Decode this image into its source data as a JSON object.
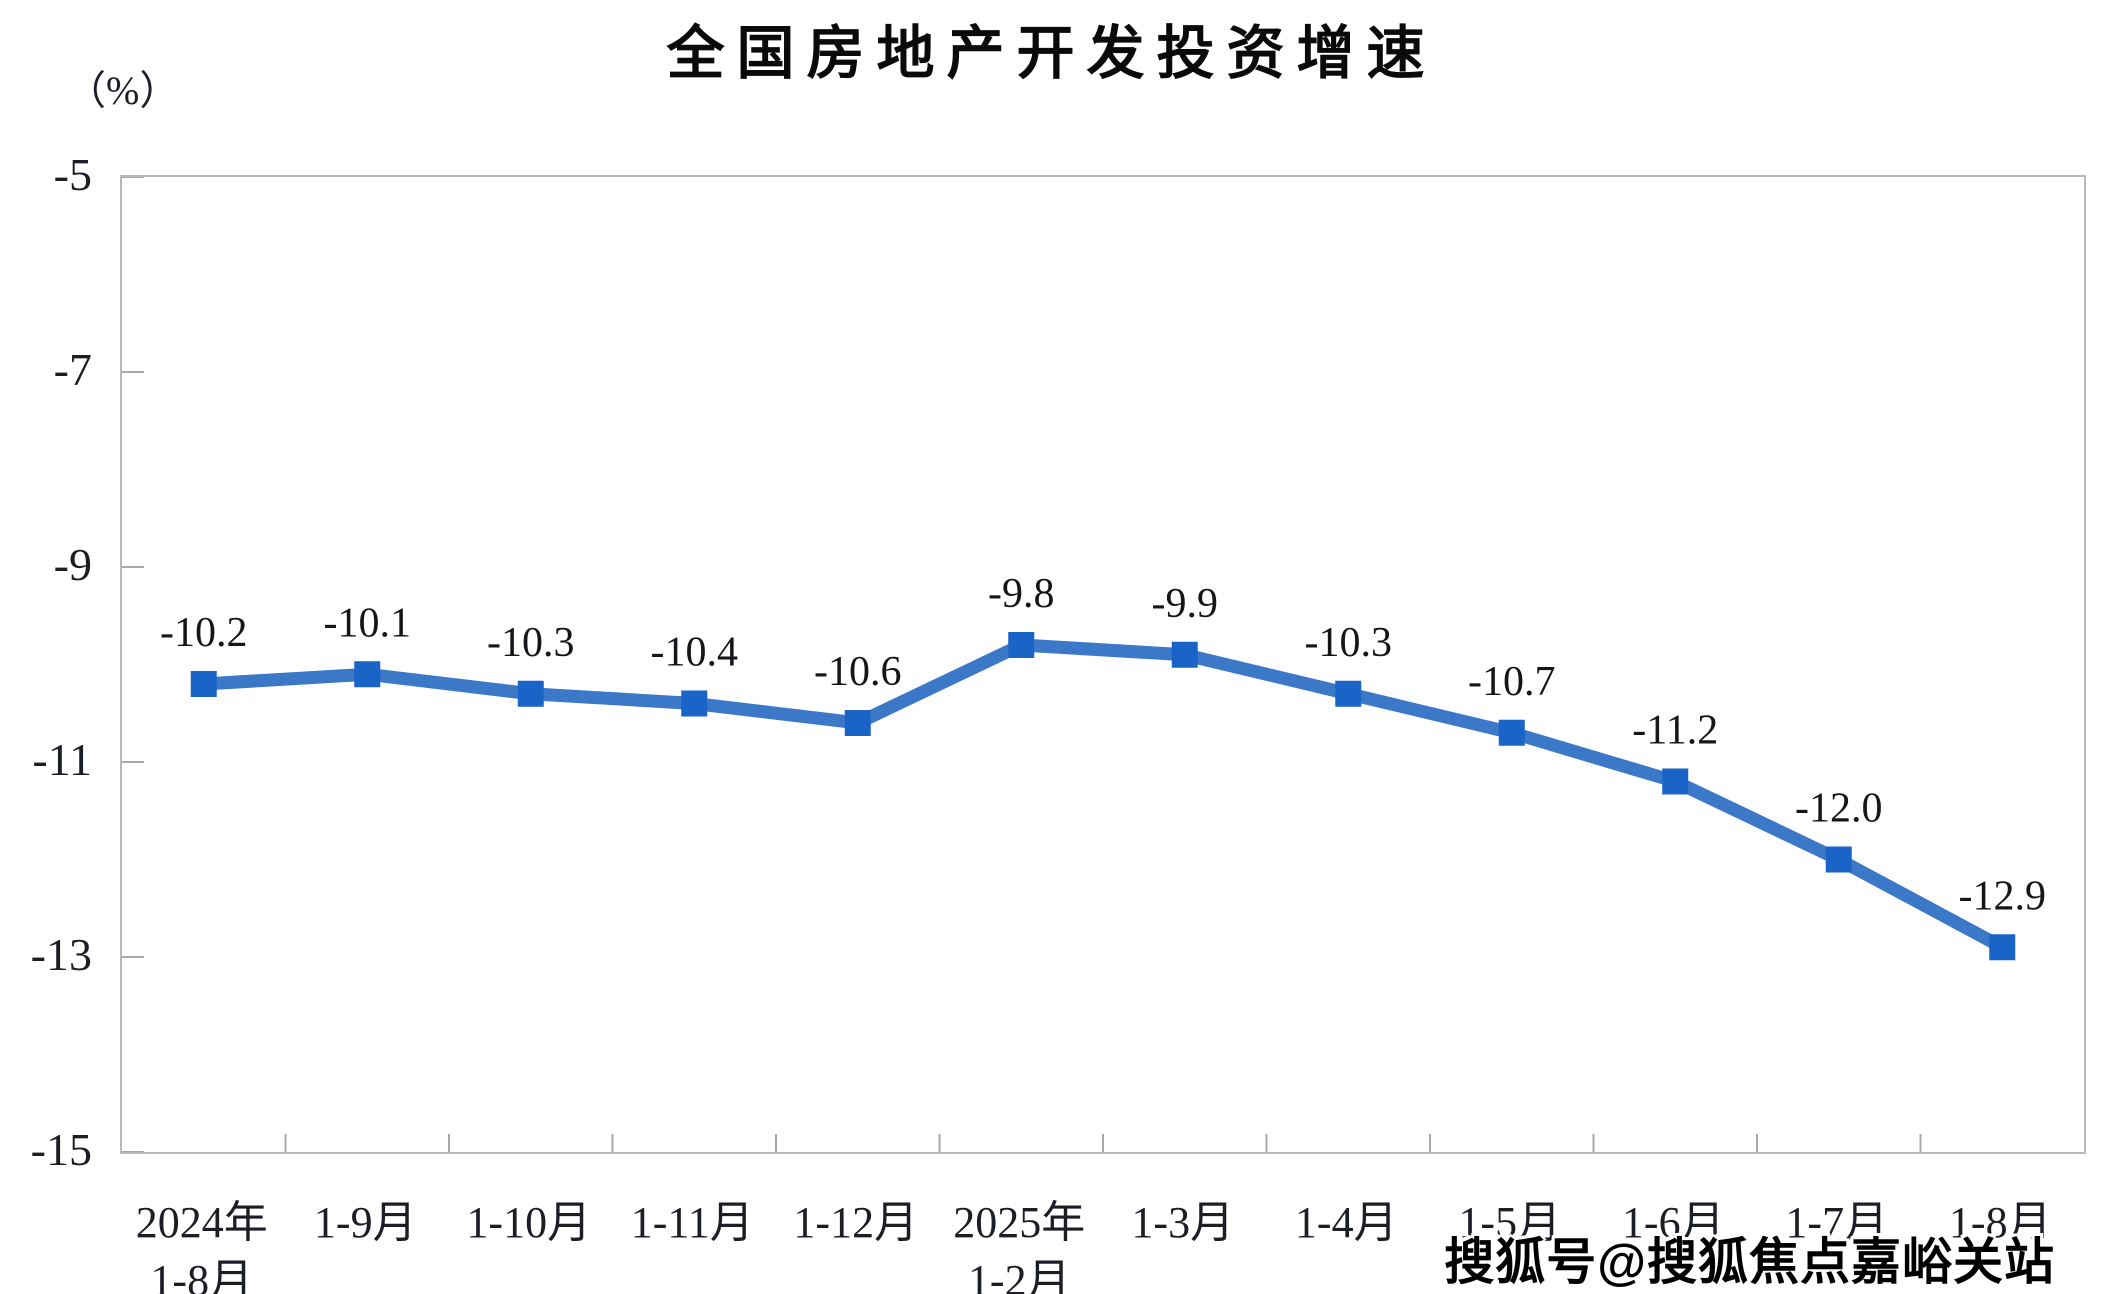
{
  "title": "全国房地产开发投资增速",
  "y_axis_unit": "（%）",
  "watermark": "搜狐号@搜狐焦点嘉峪关站",
  "colors": {
    "line": "#3C78C8",
    "marker": "#1A64C8",
    "axis_border": "#b9b9b9",
    "tick": "#a8a8a8",
    "label_text": "#15151a",
    "axis_text": "#1c1e26",
    "title_text": "#0a0a0a"
  },
  "chart_data": {
    "type": "line",
    "title": "全国房地产开发投资增速",
    "ylabel": "（%）",
    "xlabel": "",
    "ylim": [
      -15,
      -5
    ],
    "yticks": [
      -5,
      -7,
      -9,
      -11,
      -13,
      -15
    ],
    "grid": false,
    "legend": "none",
    "marker": "square",
    "categories": [
      [
        "2024年",
        "1-8月"
      ],
      [
        "1-9月"
      ],
      [
        "1-10月"
      ],
      [
        "1-11月"
      ],
      [
        "1-12月"
      ],
      [
        "2025年",
        "1-2月"
      ],
      [
        "1-3月"
      ],
      [
        "1-4月"
      ],
      [
        "1-5月"
      ],
      [
        "1-6月"
      ],
      [
        "1-7月"
      ],
      [
        "1-8月"
      ]
    ],
    "series": [
      {
        "name": "全国房地产开发投资增速",
        "values": [
          -10.2,
          -10.1,
          -10.3,
          -10.4,
          -10.6,
          -9.8,
          -9.9,
          -10.3,
          -10.7,
          -11.2,
          -12.0,
          -12.9
        ],
        "data_labels": [
          "-10.2",
          "-10.1",
          "-10.3",
          "-10.4",
          "-10.6",
          "-9.8",
          "-9.9",
          "-10.3",
          "-10.7",
          "-11.2",
          "-12.0",
          "-12.9"
        ]
      }
    ]
  }
}
